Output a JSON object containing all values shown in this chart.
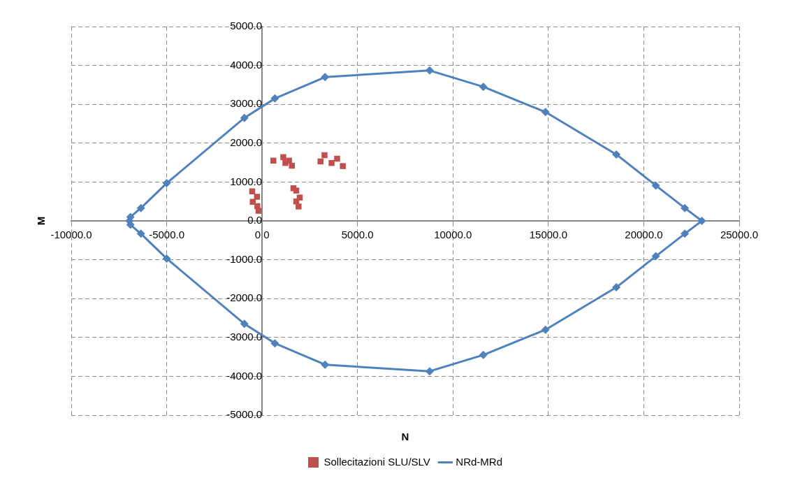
{
  "chart_data": {
    "type": "scatter",
    "xlabel": "N",
    "ylabel": "M",
    "xlim": [
      -10000,
      25000
    ],
    "ylim": [
      -5000,
      5000
    ],
    "xticks": [
      {
        "value": -10000,
        "label": "-10000.0"
      },
      {
        "value": -5000,
        "label": "-5000.0"
      },
      {
        "value": 0,
        "label": "0.0"
      },
      {
        "value": 5000,
        "label": "5000.0"
      },
      {
        "value": 10000,
        "label": "10000.0"
      },
      {
        "value": 15000,
        "label": "15000.0"
      },
      {
        "value": 20000,
        "label": "20000.0"
      },
      {
        "value": 25000,
        "label": "25000.0"
      }
    ],
    "yticks": [
      {
        "value": -5000,
        "label": "-5000.0"
      },
      {
        "value": -4000,
        "label": "-4000.0"
      },
      {
        "value": -3000,
        "label": "-3000.0"
      },
      {
        "value": -2000,
        "label": "-2000.0"
      },
      {
        "value": -1000,
        "label": "-1000.0"
      },
      {
        "value": 0,
        "label": "0.0"
      },
      {
        "value": 1000,
        "label": "1000.0"
      },
      {
        "value": 2000,
        "label": "2000.0"
      },
      {
        "value": 3000,
        "label": "3000.0"
      },
      {
        "value": 4000,
        "label": "4000.0"
      },
      {
        "value": 5000,
        "label": "5000.0"
      }
    ],
    "grid": true,
    "legend": "bottom",
    "line_style": "solid",
    "series": [
      {
        "name": "Sollecitazioni SLU/SLV",
        "type": "scatter",
        "marker": "square",
        "color": "#c0504d",
        "x": [
          590,
          1110,
          1220,
          1410,
          1560,
          3060,
          3270,
          3640,
          3930,
          4230,
          -520,
          -270,
          -490,
          -250,
          -190,
          1640,
          1790,
          1970,
          1790,
          1910
        ],
        "values": [
          1550,
          1640,
          1490,
          1550,
          1420,
          1530,
          1690,
          1490,
          1600,
          1410,
          760,
          620,
          490,
          380,
          260,
          840,
          780,
          600,
          500,
          370
        ]
      },
      {
        "name": "NRd-MRd",
        "type": "line",
        "marker": "diamond",
        "color": "#4f81bd",
        "x": [
          -6950,
          -6900,
          -6350,
          -5000,
          -930,
          670,
          3300,
          8780,
          11590,
          14850,
          18560,
          20630,
          22150,
          23040,
          22150,
          20630,
          18560,
          14850,
          11590,
          8780,
          3300,
          670,
          -930,
          -5000,
          -6350,
          -6900
        ],
        "values": [
          0,
          100,
          330,
          970,
          2650,
          3150,
          3700,
          3870,
          3450,
          2800,
          1710,
          910,
          330,
          0,
          -330,
          -910,
          -1710,
          -2800,
          -3450,
          -3870,
          -3700,
          -3150,
          -2650,
          -970,
          -330,
          -100
        ]
      }
    ]
  }
}
